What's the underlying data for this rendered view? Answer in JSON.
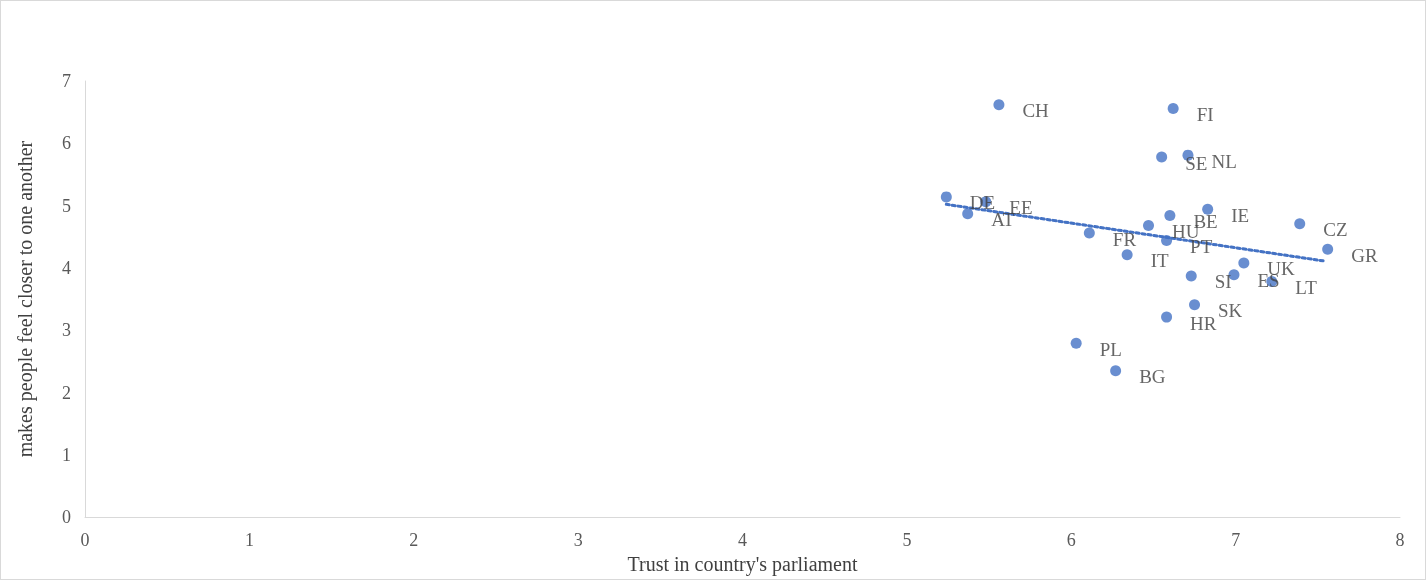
{
  "chart_data": {
    "type": "scatter",
    "xlabel": "Trust in country's parliament",
    "ylabel": "makes people feel closer to one another",
    "xlim": [
      0,
      8
    ],
    "xticks": [
      0,
      1,
      2,
      3,
      4,
      5,
      6,
      7,
      8
    ],
    "ylim": [
      0,
      7
    ],
    "yticks": [
      0,
      1,
      2,
      3,
      4,
      5,
      6,
      7
    ],
    "marker": "circle",
    "series": [
      {
        "name": "CH",
        "color": "#4472c4",
        "x": [
          5.56
        ],
        "values": [
          6.62
        ]
      },
      {
        "name": "FI",
        "color": "#4472c4",
        "x": [
          6.62
        ],
        "values": [
          6.56
        ]
      },
      {
        "name": "SE",
        "color": "#4472c4",
        "x": [
          6.55
        ],
        "values": [
          5.78
        ]
      },
      {
        "name": "NL",
        "color": "#4472c4",
        "x": [
          6.71
        ],
        "values": [
          5.81
        ]
      },
      {
        "name": "DE",
        "color": "#4472c4",
        "x": [
          5.24
        ],
        "values": [
          5.14
        ]
      },
      {
        "name": "EE",
        "color": "#4472c4",
        "x": [
          5.48
        ],
        "values": [
          5.06
        ]
      },
      {
        "name": "AT",
        "color": "#4472c4",
        "x": [
          5.37
        ],
        "values": [
          4.87
        ]
      },
      {
        "name": "IE",
        "color": "#4472c4",
        "x": [
          6.83
        ],
        "values": [
          4.94
        ]
      },
      {
        "name": "BE",
        "color": "#4472c4",
        "x": [
          6.6
        ],
        "values": [
          4.84
        ]
      },
      {
        "name": "HU",
        "color": "#4472c4",
        "x": [
          6.47
        ],
        "values": [
          4.68
        ]
      },
      {
        "name": "CZ",
        "color": "#4472c4",
        "x": [
          7.39
        ],
        "values": [
          4.71
        ]
      },
      {
        "name": "FR",
        "color": "#4472c4",
        "x": [
          6.11
        ],
        "values": [
          4.56
        ]
      },
      {
        "name": "PT",
        "color": "#4472c4",
        "x": [
          6.58
        ],
        "values": [
          4.44
        ]
      },
      {
        "name": "IT",
        "color": "#4472c4",
        "x": [
          6.34
        ],
        "values": [
          4.21
        ]
      },
      {
        "name": "GR",
        "color": "#4472c4",
        "x": [
          7.56
        ],
        "values": [
          4.3
        ]
      },
      {
        "name": "UK",
        "color": "#4472c4",
        "x": [
          7.05
        ],
        "values": [
          4.08
        ]
      },
      {
        "name": "ES",
        "color": "#4472c4",
        "x": [
          6.99
        ],
        "values": [
          3.89
        ]
      },
      {
        "name": "SI",
        "color": "#4472c4",
        "x": [
          6.73
        ],
        "values": [
          3.87
        ]
      },
      {
        "name": "LT",
        "color": "#4472c4",
        "x": [
          7.22
        ],
        "values": [
          3.78
        ]
      },
      {
        "name": "SK",
        "color": "#4472c4",
        "x": [
          6.75
        ],
        "values": [
          3.41
        ]
      },
      {
        "name": "HR",
        "color": "#4472c4",
        "x": [
          6.58
        ],
        "values": [
          3.21
        ]
      },
      {
        "name": "PL",
        "color": "#4472c4",
        "x": [
          6.03
        ],
        "values": [
          2.79
        ]
      },
      {
        "name": "BG",
        "color": "#4472c4",
        "x": [
          6.27
        ],
        "values": [
          2.35
        ]
      },
      {
        "type": "line",
        "color": "#4472c4",
        "line_style": "dotted",
        "marker": "none",
        "x": [
          5.24,
          7.54
        ],
        "values": [
          5.02,
          4.11
        ]
      }
    ]
  }
}
